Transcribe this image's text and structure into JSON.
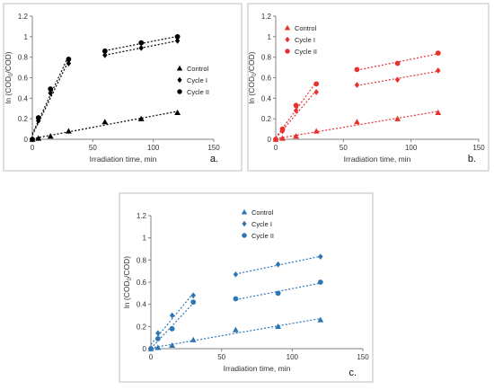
{
  "chart_data": [
    {
      "type": "scatter",
      "panel_label": "a.",
      "color": "#000000",
      "xlabel": "Irradiation time, min",
      "ylabel_main": "ln (COD",
      "ylabel_sub": "0",
      "ylabel_tail": "/COD)",
      "xlim": [
        0,
        150
      ],
      "ylim": [
        0,
        1.2
      ],
      "xticks": [
        "0",
        "50",
        "100",
        "150"
      ],
      "yticks": [
        "0",
        "0.2",
        "0.4",
        "0.6",
        "0.8",
        "1",
        "1.2"
      ],
      "legend_position": "right",
      "series": [
        {
          "name": "Control",
          "marker": "triangle",
          "x": [
            0,
            5,
            15,
            30,
            60,
            90,
            120
          ],
          "y": [
            0,
            0.01,
            0.03,
            0.08,
            0.17,
            0.2,
            0.26
          ]
        },
        {
          "name": "Cycle I",
          "marker": "diamond",
          "x": [
            0,
            5,
            15,
            30,
            60,
            90,
            120
          ],
          "y": [
            0,
            0.18,
            0.45,
            0.74,
            0.82,
            0.89,
            0.96
          ]
        },
        {
          "name": "Cycle II",
          "marker": "circle",
          "x": [
            0,
            5,
            15,
            30,
            60,
            90,
            120
          ],
          "y": [
            0,
            0.21,
            0.49,
            0.78,
            0.86,
            0.94,
            1.0
          ]
        }
      ]
    },
    {
      "type": "scatter",
      "panel_label": "b.",
      "color": "#e8312f",
      "xlabel": "Irradiation time, min",
      "ylabel_main": "ln (COD",
      "ylabel_sub": "0",
      "ylabel_tail": "/COD)",
      "xlim": [
        0,
        150
      ],
      "ylim": [
        0,
        1.2
      ],
      "xticks": [
        "0",
        "50",
        "100",
        "150"
      ],
      "yticks": [
        "0",
        "0.2",
        "0.4",
        "0.6",
        "0.8",
        "1",
        "1.2"
      ],
      "legend_position": "top-left",
      "series": [
        {
          "name": "Control",
          "marker": "triangle",
          "x": [
            0,
            5,
            15,
            30,
            60,
            90,
            120
          ],
          "y": [
            0,
            0.01,
            0.03,
            0.08,
            0.17,
            0.2,
            0.26
          ]
        },
        {
          "name": "Cycle I",
          "marker": "diamond",
          "x": [
            0,
            5,
            15,
            30,
            60,
            90,
            120
          ],
          "y": [
            0,
            0.08,
            0.28,
            0.46,
            0.53,
            0.58,
            0.67
          ]
        },
        {
          "name": "Cycle II",
          "marker": "circle",
          "x": [
            0,
            5,
            15,
            30,
            60,
            90,
            120
          ],
          "y": [
            0,
            0.1,
            0.33,
            0.54,
            0.68,
            0.74,
            0.84
          ]
        }
      ]
    },
    {
      "type": "scatter",
      "panel_label": "c.",
      "color": "#2e75b6",
      "xlabel": "Irradiation time, min",
      "ylabel_main": "ln (COD",
      "ylabel_sub": "0",
      "ylabel_tail": "/COD)",
      "xlim": [
        0,
        150
      ],
      "ylim": [
        0,
        1.2
      ],
      "xticks": [
        "0",
        "50",
        "100",
        "150"
      ],
      "yticks": [
        "0",
        "0.2",
        "0.4",
        "0.6",
        "0.8",
        "1",
        "1.2"
      ],
      "legend_position": "top-right",
      "series": [
        {
          "name": "Control",
          "marker": "triangle",
          "x": [
            0,
            5,
            15,
            30,
            60,
            90,
            120
          ],
          "y": [
            0,
            0.01,
            0.03,
            0.08,
            0.17,
            0.2,
            0.26
          ]
        },
        {
          "name": "Cycle I",
          "marker": "diamond",
          "x": [
            0,
            5,
            15,
            30,
            60,
            90,
            120
          ],
          "y": [
            0,
            0.14,
            0.3,
            0.48,
            0.67,
            0.76,
            0.83
          ]
        },
        {
          "name": "Cycle II",
          "marker": "circle",
          "x": [
            0,
            5,
            15,
            30,
            60,
            90,
            120
          ],
          "y": [
            0,
            0.09,
            0.18,
            0.42,
            0.45,
            0.5,
            0.6
          ]
        }
      ]
    }
  ]
}
